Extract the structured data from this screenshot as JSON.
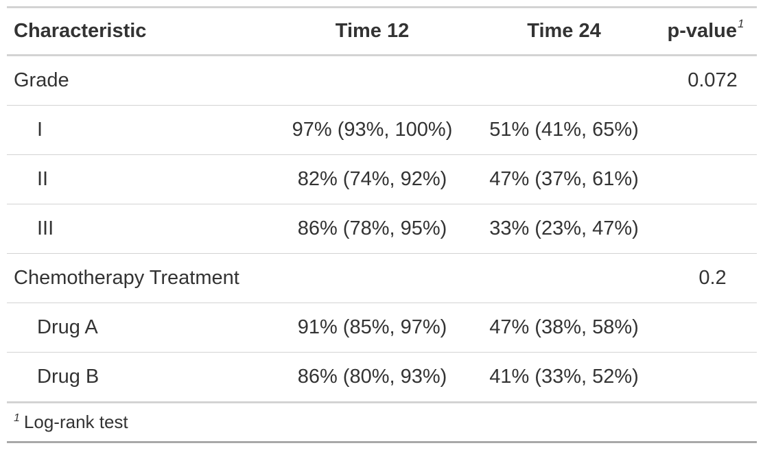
{
  "header": {
    "characteristic": "Characteristic",
    "time12": "Time 12",
    "time24": "Time 24",
    "pvalue": "p-value",
    "pvalue_footnote_mark": "1"
  },
  "groups": [
    {
      "label": "Grade",
      "pvalue": "0.072",
      "rows": [
        {
          "label": "I",
          "time12": "97% (93%, 100%)",
          "time24": "51% (41%, 65%)"
        },
        {
          "label": "II",
          "time12": "82% (74%, 92%)",
          "time24": "47% (37%, 61%)"
        },
        {
          "label": "III",
          "time12": "86% (78%, 95%)",
          "time24": "33% (23%, 47%)"
        }
      ]
    },
    {
      "label": "Chemotherapy Treatment",
      "pvalue": "0.2",
      "rows": [
        {
          "label": "Drug A",
          "time12": "91% (85%, 97%)",
          "time24": "47% (38%, 58%)"
        },
        {
          "label": "Drug B",
          "time12": "86% (80%, 93%)",
          "time24": "41% (33%, 52%)"
        }
      ]
    }
  ],
  "footnote": {
    "mark": "1",
    "text": "Log-rank test"
  },
  "colors": {
    "text": "#333333",
    "rule_light": "#d3d3d3",
    "rule_dark": "#a8a8a8"
  }
}
